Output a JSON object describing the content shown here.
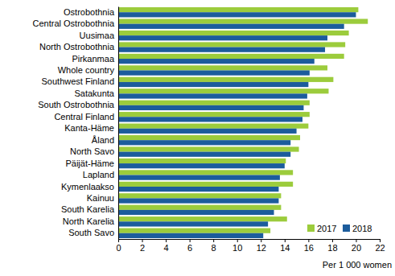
{
  "chart_data": {
    "type": "bar",
    "orientation": "horizontal",
    "categories": [
      "Ostrobothnia",
      "Central Ostrobothnia",
      "Uusimaa",
      "North Ostrobothnia",
      "Pirkanmaa",
      "Whole country",
      "Southwest Finland",
      "Satakunta",
      "South Ostrobothnia",
      "Central Finland",
      "Kanta-Häme",
      "Åland",
      "North Savo",
      "Päijät-Häme",
      "Lapland",
      "Kymenlaakso",
      "Kainuu",
      "South Karelia",
      "North Karelia",
      "South Savo"
    ],
    "series": [
      {
        "name": "2017",
        "color": "#9ccc3c",
        "values": [
          20.2,
          21.0,
          19.4,
          19.1,
          19.0,
          17.6,
          18.1,
          17.7,
          16.1,
          16.1,
          16.0,
          15.3,
          15.2,
          14.1,
          14.7,
          14.7,
          13.7,
          13.7,
          14.2,
          12.8
        ]
      },
      {
        "name": "2018",
        "color": "#1c5c9c",
        "values": [
          20.0,
          19.0,
          17.6,
          17.4,
          16.5,
          16.1,
          16.0,
          15.9,
          15.6,
          15.5,
          15.0,
          14.5,
          14.5,
          14.0,
          13.6,
          13.5,
          13.5,
          13.1,
          12.6,
          12.2
        ]
      }
    ],
    "xlabel": "Per 1 000 women",
    "xlim": [
      0,
      22
    ],
    "xticks": [
      0,
      2,
      4,
      6,
      8,
      10,
      12,
      14,
      16,
      18,
      20,
      22
    ],
    "legend": "lower right"
  }
}
